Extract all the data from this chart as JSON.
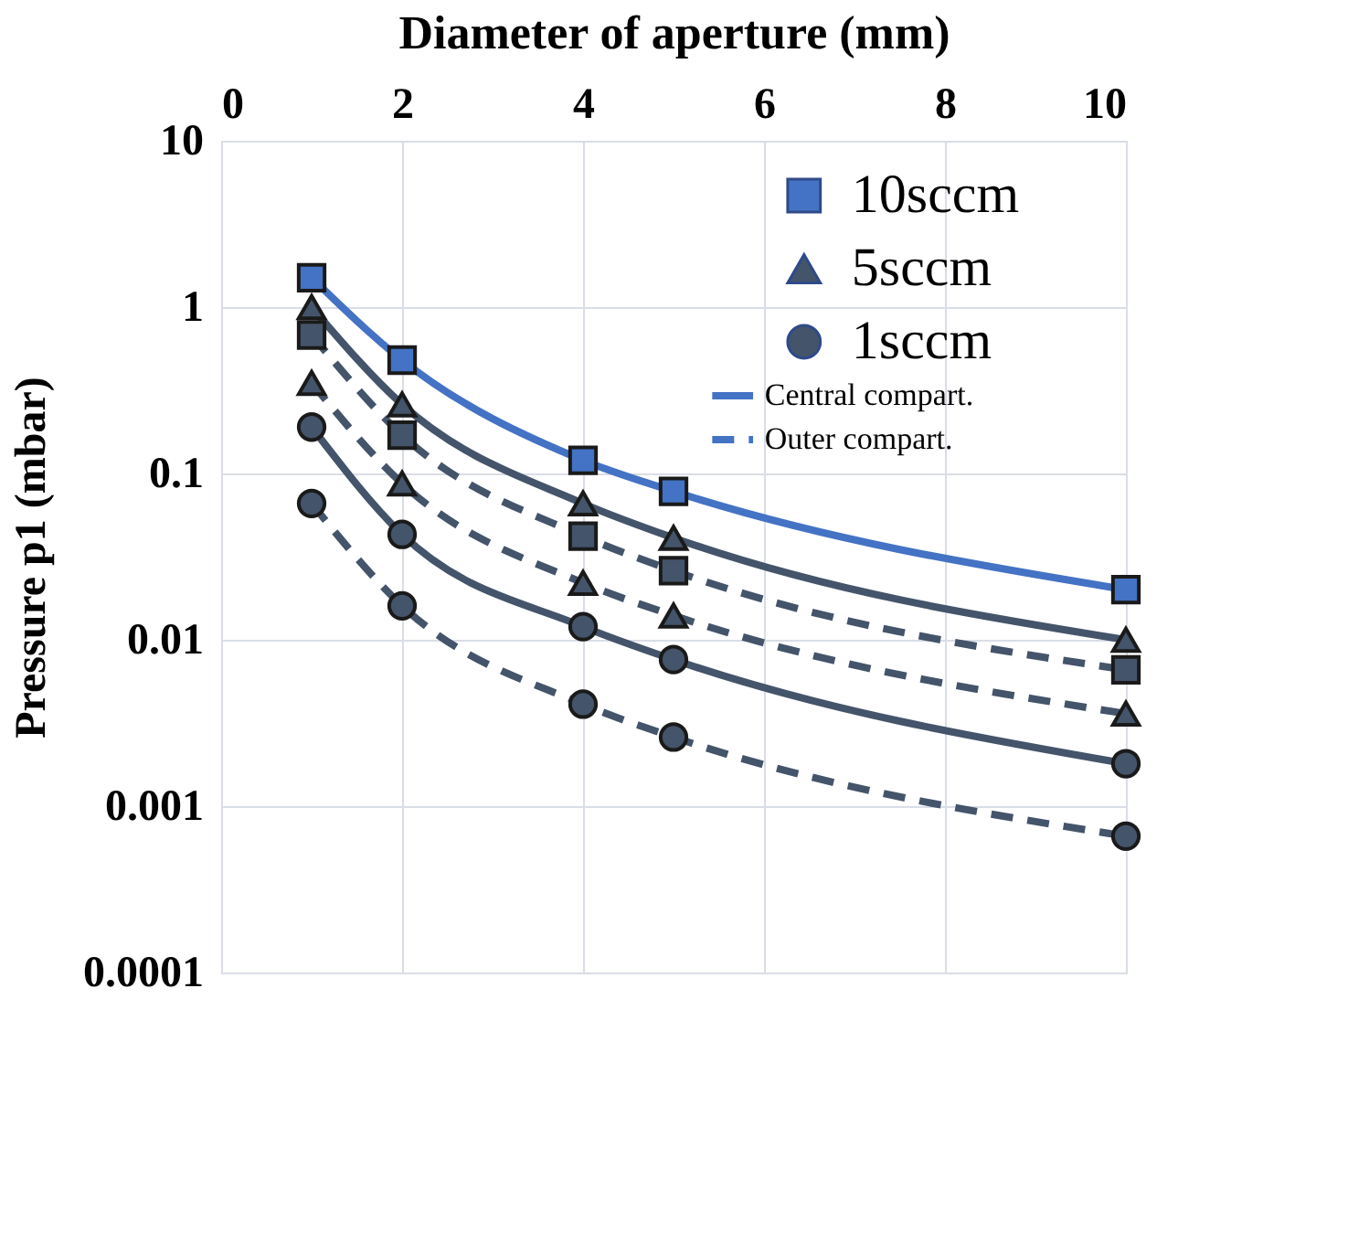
{
  "chart_data": {
    "type": "line",
    "xlabel": "Diameter of aperture (mm)",
    "ylabel": "Pressure p1 (mbar)",
    "x": [
      1,
      2,
      4,
      5,
      10
    ],
    "xlim": [
      0,
      10
    ],
    "xticks": [
      0,
      2,
      4,
      6,
      8,
      10
    ],
    "ylim": [
      0.0001,
      10
    ],
    "yticks": [
      0.0001,
      0.001,
      0.01,
      0.1,
      1,
      10
    ],
    "log": "y",
    "grid": true,
    "legend": "top right",
    "annotations": [
      "Central compart.",
      "Outer compart."
    ],
    "series": [
      {
        "name": "10sccm",
        "color": "#4472c4",
        "marker": "square",
        "line_style": "solid",
        "values": [
          1.5,
          0.48,
          0.12,
          0.078,
          0.02
        ]
      },
      {
        "color": "#44546a",
        "marker": "square",
        "line_style": "dashed",
        "values": [
          0.68,
          0.17,
          0.042,
          0.026,
          0.0066
        ]
      },
      {
        "name": "5sccm",
        "color": "#44546a",
        "marker": "triangle",
        "line_style": "solid",
        "values": [
          1.0,
          0.26,
          0.066,
          0.041,
          0.01
        ]
      },
      {
        "color": "#44546a",
        "marker": "triangle",
        "line_style": "dashed",
        "values": [
          0.35,
          0.087,
          0.022,
          0.014,
          0.0036
        ]
      },
      {
        "name": "1sccm",
        "color": "#44546a",
        "marker": "circle",
        "line_style": "solid",
        "values": [
          0.19,
          0.043,
          0.012,
          0.0076,
          0.0018
        ]
      },
      {
        "color": "#44546a",
        "marker": "circle",
        "line_style": "dashed",
        "values": [
          0.066,
          0.016,
          0.0041,
          0.0026,
          0.00066
        ]
      }
    ]
  }
}
